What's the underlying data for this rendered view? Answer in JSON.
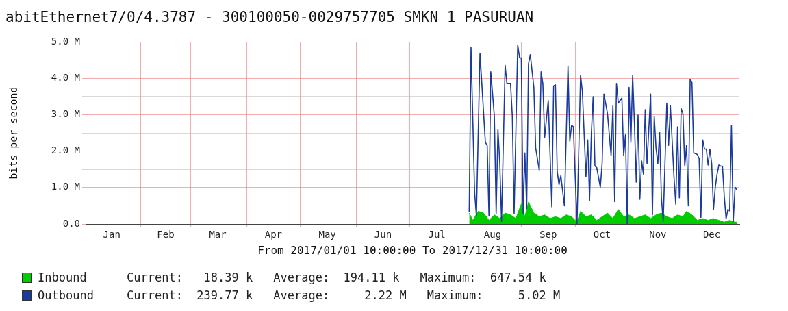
{
  "chart_data": {
    "type": "line",
    "title": "abitEthernet7/0/4.3787 - 300100050-0029757705 SMKN 1 PASURUAN",
    "xlabel": "From 2017/01/01 10:00:00 To 2017/12/31 10:00:00",
    "ylabel": "bits per second",
    "xlim": [
      "2017-01-01T10:00",
      "2017-12-31T10:00"
    ],
    "xticks": [
      {
        "value": "2017-01-16",
        "label": "Jan"
      },
      {
        "value": "2017-02-01",
        "label": null
      },
      {
        "value": "2017-02-15",
        "label": "Feb"
      },
      {
        "value": "2017-03-01",
        "label": null
      },
      {
        "value": "2017-03-16",
        "label": "Mar"
      },
      {
        "value": "2017-04-01",
        "label": null
      },
      {
        "value": "2017-04-16",
        "label": "Apr"
      },
      {
        "value": "2017-05-01",
        "label": null
      },
      {
        "value": "2017-05-16",
        "label": "May"
      },
      {
        "value": "2017-06-01",
        "label": null
      },
      {
        "value": "2017-06-16",
        "label": "Jun"
      },
      {
        "value": "2017-07-01",
        "label": null
      },
      {
        "value": "2017-07-16",
        "label": "Jul"
      },
      {
        "value": "2017-08-01",
        "label": null
      },
      {
        "value": "2017-08-16",
        "label": "Aug"
      },
      {
        "value": "2017-09-01",
        "label": null
      },
      {
        "value": "2017-09-16",
        "label": "Sep"
      },
      {
        "value": "2017-10-01",
        "label": null
      },
      {
        "value": "2017-10-16",
        "label": "Oct"
      },
      {
        "value": "2017-11-01",
        "label": null
      },
      {
        "value": "2017-11-16",
        "label": "Nov"
      },
      {
        "value": "2017-12-01",
        "label": null
      },
      {
        "value": "2017-12-16",
        "label": "Dec"
      }
    ],
    "ylim": [
      0,
      5
    ],
    "yticks": [
      {
        "value": 0,
        "label": "0.0"
      },
      {
        "value": 0.5,
        "label": null
      },
      {
        "value": 1,
        "label": "1.0 M"
      },
      {
        "value": 1.5,
        "label": null
      },
      {
        "value": 2,
        "label": "2.0 M"
      },
      {
        "value": 2.5,
        "label": null
      },
      {
        "value": 3,
        "label": "3.0 M"
      },
      {
        "value": 3.5,
        "label": null
      },
      {
        "value": 4,
        "label": "4.0 M"
      },
      {
        "value": 4.5,
        "label": null
      },
      {
        "value": 5,
        "label": "5.0 M"
      }
    ],
    "grid": true,
    "legend": "bottom",
    "marker": "none",
    "annotations": [
      "Current:   18.39 k",
      "Average:  194.11 k",
      "Maximum:  647.54 k",
      "Current:  239.77 k",
      "Average:     2.22 M",
      "Maximum:     5.02 M"
    ],
    "series": [
      {
        "name": "Inbound",
        "type": "area",
        "color": "#00cc00",
        "x": [
          "2017-08-03",
          "2017-08-05",
          "2017-08-08",
          "2017-08-11",
          "2017-08-14",
          "2017-08-17",
          "2017-08-20",
          "2017-08-23",
          "2017-08-26",
          "2017-08-29",
          "2017-09-01",
          "2017-09-03",
          "2017-09-05",
          "2017-09-08",
          "2017-09-11",
          "2017-09-14",
          "2017-09-17",
          "2017-09-20",
          "2017-09-23",
          "2017-09-26",
          "2017-09-29",
          "2017-10-02",
          "2017-10-04",
          "2017-10-07",
          "2017-10-10",
          "2017-10-13",
          "2017-10-16",
          "2017-10-19",
          "2017-10-22",
          "2017-10-25",
          "2017-10-28",
          "2017-10-31",
          "2017-11-03",
          "2017-11-06",
          "2017-11-09",
          "2017-11-12",
          "2017-11-15",
          "2017-11-18",
          "2017-11-21",
          "2017-11-24",
          "2017-11-27",
          "2017-11-30",
          "2017-12-02",
          "2017-12-05",
          "2017-12-08",
          "2017-12-11",
          "2017-12-14",
          "2017-12-17",
          "2017-12-20",
          "2017-12-23",
          "2017-12-26",
          "2017-12-29",
          "2017-12-30"
        ],
        "values": [
          0.3,
          0.1,
          0.35,
          0.3,
          0.1,
          0.25,
          0.15,
          0.3,
          0.25,
          0.15,
          0.55,
          0.2,
          0.6,
          0.3,
          0.2,
          0.25,
          0.15,
          0.2,
          0.15,
          0.25,
          0.2,
          0.05,
          0.35,
          0.2,
          0.25,
          0.1,
          0.2,
          0.3,
          0.15,
          0.4,
          0.2,
          0.25,
          0.15,
          0.2,
          0.25,
          0.15,
          0.25,
          0.3,
          0.2,
          0.15,
          0.25,
          0.2,
          0.35,
          0.25,
          0.1,
          0.15,
          0.1,
          0.15,
          0.1,
          0.05,
          0.1,
          0.05,
          0.05
        ]
      },
      {
        "name": "Outbound",
        "type": "line",
        "color": "#1a3a9e",
        "x": [
          "2017-08-03",
          "2017-08-04",
          "2017-08-06",
          "2017-08-07",
          "2017-08-09",
          "2017-08-12",
          "2017-08-13",
          "2017-08-14",
          "2017-08-15",
          "2017-08-17",
          "2017-08-18",
          "2017-08-19",
          "2017-08-20",
          "2017-08-21",
          "2017-08-23",
          "2017-08-24",
          "2017-08-26",
          "2017-08-27",
          "2017-08-28",
          "2017-08-30",
          "2017-08-31",
          "2017-09-01",
          "2017-09-02",
          "2017-09-03",
          "2017-09-04",
          "2017-09-05",
          "2017-09-06",
          "2017-09-08",
          "2017-09-09",
          "2017-09-11",
          "2017-09-12",
          "2017-09-13",
          "2017-09-14",
          "2017-09-16",
          "2017-09-18",
          "2017-09-19",
          "2017-09-20",
          "2017-09-21",
          "2017-09-22",
          "2017-09-23",
          "2017-09-25",
          "2017-09-27",
          "2017-09-28",
          "2017-09-29",
          "2017-09-30",
          "2017-10-02",
          "2017-10-04",
          "2017-10-05",
          "2017-10-07",
          "2017-10-08",
          "2017-10-09",
          "2017-10-10",
          "2017-10-11",
          "2017-10-12",
          "2017-10-13",
          "2017-10-15",
          "2017-10-16",
          "2017-10-17",
          "2017-10-19",
          "2017-10-21",
          "2017-10-22",
          "2017-10-23",
          "2017-10-24",
          "2017-10-25",
          "2017-10-27",
          "2017-10-28",
          "2017-10-29",
          "2017-10-30",
          "2017-10-31",
          "2017-11-01",
          "2017-11-02",
          "2017-11-03",
          "2017-11-04",
          "2017-11-05",
          "2017-11-06",
          "2017-11-07",
          "2017-11-08",
          "2017-11-09",
          "2017-11-10",
          "2017-11-12",
          "2017-11-13",
          "2017-11-14",
          "2017-11-15",
          "2017-11-16",
          "2017-11-17",
          "2017-11-18",
          "2017-11-19",
          "2017-11-21",
          "2017-11-22",
          "2017-11-23",
          "2017-11-25",
          "2017-11-26",
          "2017-11-27",
          "2017-11-28",
          "2017-11-29",
          "2017-11-30",
          "2017-12-01",
          "2017-12-02",
          "2017-12-03",
          "2017-12-04",
          "2017-12-05",
          "2017-12-06",
          "2017-12-08",
          "2017-12-09",
          "2017-12-10",
          "2017-12-11",
          "2017-12-12",
          "2017-12-13",
          "2017-12-14",
          "2017-12-15",
          "2017-12-16",
          "2017-12-17",
          "2017-12-18",
          "2017-12-19",
          "2017-12-20",
          "2017-12-21",
          "2017-12-22",
          "2017-12-23",
          "2017-12-24",
          "2017-12-25",
          "2017-12-26",
          "2017-12-27",
          "2017-12-28",
          "2017-12-29",
          "2017-12-30"
        ],
        "values": [
          0.32,
          4.85,
          0.87,
          0.22,
          4.69,
          2.24,
          2.16,
          0.22,
          4.18,
          2.96,
          0.29,
          2.6,
          1.69,
          0.07,
          4.36,
          3.86,
          3.86,
          2.96,
          0.29,
          4.91,
          4.58,
          4.55,
          0.29,
          1.95,
          0.43,
          4.4,
          4.65,
          3.75,
          2.09,
          1.48,
          4.18,
          3.86,
          2.38,
          3.39,
          0.47,
          3.79,
          3.82,
          1.44,
          1.08,
          1.33,
          0.5,
          4.34,
          2.27,
          2.71,
          2.67,
          0,
          4.08,
          3.64,
          1.3,
          2.31,
          0.65,
          2.49,
          3.5,
          1.59,
          1.55,
          1.01,
          1.66,
          3.57,
          3.03,
          1.88,
          3.25,
          0.61,
          3.86,
          3.32,
          3.46,
          1.88,
          2.45,
          0,
          3.75,
          2.24,
          4.08,
          2.74,
          1.15,
          2.99,
          0.68,
          1.73,
          1.37,
          3.14,
          1.66,
          3.57,
          0.25,
          2.96,
          2.09,
          1.66,
          2.52,
          0.72,
          0.07,
          3.32,
          2.16,
          3.25,
          1.3,
          0.54,
          2.67,
          0.72,
          3.17,
          3.03,
          1.59,
          2.16,
          0.5,
          3.97,
          3.9,
          1.95,
          1.91,
          1.8,
          0.18,
          2.31,
          2.06,
          2.06,
          1.62,
          2.06,
          1.66,
          0.4,
          1.01,
          1.37,
          1.62,
          1.59,
          1.59,
          0.76,
          0.14,
          0.4,
          0.36,
          2.71,
          0.07,
          1.01,
          0.94
        ]
      }
    ]
  }
}
